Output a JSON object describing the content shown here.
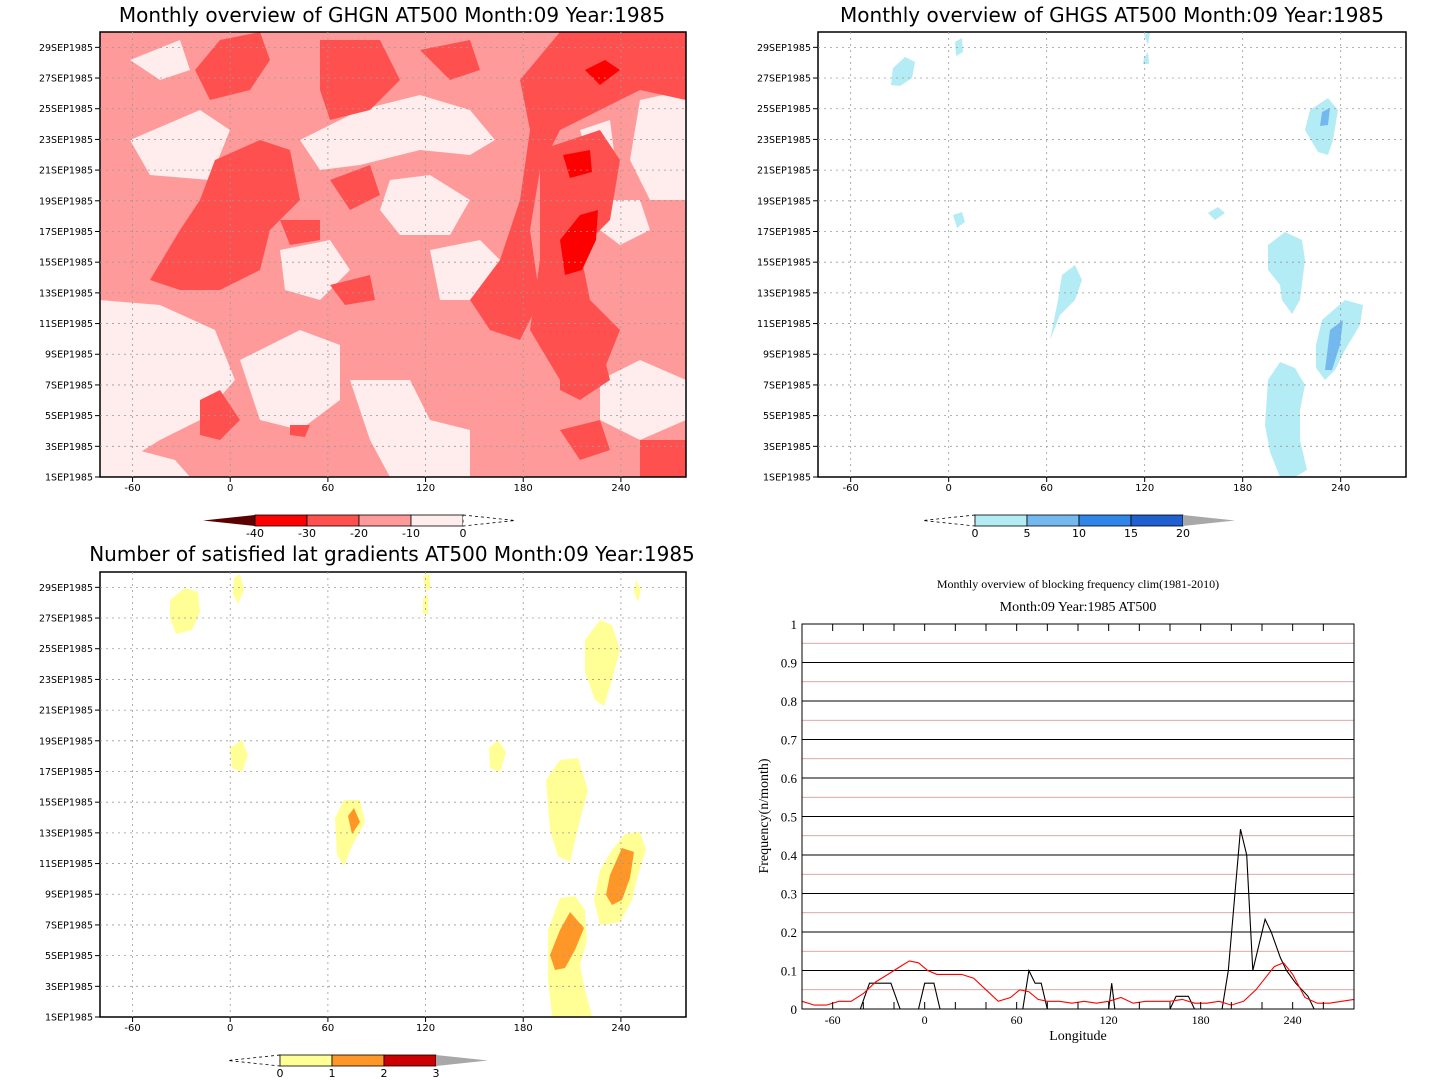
{
  "panels": [
    {
      "title": "Monthly overview of GHGN AT500 Month:09 Year:1985",
      "y_ticks": [
        "1SEP1985",
        "3SEP1985",
        "5SEP1985",
        "7SEP1985",
        "9SEP1985",
        "11SEP1985",
        "13SEP1985",
        "15SEP1985",
        "17SEP1985",
        "19SEP1985",
        "21SEP1985",
        "23SEP1985",
        "25SEP1985",
        "27SEP1985",
        "29SEP1985"
      ],
      "x_ticks": [
        "-60",
        "0",
        "60",
        "120",
        "180",
        "240"
      ],
      "colorbar": {
        "labels": [
          "-40",
          "-30",
          "-20",
          "-10",
          "0"
        ],
        "colors": [
          "#ff0000",
          "#ff5050",
          "#ff9a9a",
          "#ffecec"
        ],
        "under_color": "#5a0000",
        "over_color": "#ffffff"
      }
    },
    {
      "title": "Monthly overview of GHGS AT500 Month:09 Year:1985",
      "y_ticks": [
        "1SEP1985",
        "3SEP1985",
        "5SEP1985",
        "7SEP1985",
        "9SEP1985",
        "11SEP1985",
        "13SEP1985",
        "15SEP1985",
        "17SEP1985",
        "19SEP1985",
        "21SEP1985",
        "23SEP1985",
        "25SEP1985",
        "27SEP1985",
        "29SEP1985"
      ],
      "x_ticks": [
        "-60",
        "0",
        "60",
        "120",
        "180",
        "240"
      ],
      "colorbar": {
        "labels": [
          "0",
          "5",
          "10",
          "15",
          "20"
        ],
        "colors": [
          "#b4ecf6",
          "#74b8f0",
          "#2f86e8",
          "#1f5fd0"
        ],
        "under_color": "#ffffff",
        "over_color": "#a8a8a8"
      }
    },
    {
      "title": "Number of satisfied lat gradients AT500 Month:09 Year:1985",
      "y_ticks": [
        "1SEP1985",
        "3SEP1985",
        "5SEP1985",
        "7SEP1985",
        "9SEP1985",
        "11SEP1985",
        "13SEP1985",
        "15SEP1985",
        "17SEP1985",
        "19SEP1985",
        "21SEP1985",
        "23SEP1985",
        "25SEP1985",
        "27SEP1985",
        "29SEP1985"
      ],
      "x_ticks": [
        "-60",
        "0",
        "60",
        "120",
        "180",
        "240"
      ],
      "colorbar": {
        "labels": [
          "0",
          "1",
          "2",
          "3"
        ],
        "colors": [
          "#ffff96",
          "#ff9628",
          "#cc0000"
        ],
        "under_color": "#ffffff",
        "over_color": "#a8a8a8"
      }
    }
  ],
  "colors": {
    "ghgn": [
      "#ffecec",
      "#ff9a9a",
      "#ff5050",
      "#ff0000"
    ],
    "ghgs": [
      "#b4ecf6",
      "#74b8f0"
    ],
    "grad": [
      "#ffff96",
      "#ff9628"
    ],
    "line_year": "#000000",
    "line_clim": "#ff0000",
    "grid_minor": "#d08a8a"
  },
  "line_chart": {
    "title": "Monthly overview of blocking frequency clim(1981-2010)",
    "subtitle": "Month:09 Year:1985  AT500",
    "xlabel": "Longitude",
    "ylabel": "Frequency(n/month)",
    "x_ticks": [
      "-60",
      "0",
      "60",
      "120",
      "180",
      "240"
    ],
    "y_ticks": [
      "0",
      "0.1",
      "0.2",
      "0.3",
      "0.4",
      "0.5",
      "0.6",
      "0.7",
      "0.8",
      "0.9",
      "1"
    ]
  },
  "chart_data": [
    {
      "type": "heatmap",
      "title": "Monthly overview of GHGN AT500 Month:09 Year:1985",
      "x_range": [
        -80,
        280
      ],
      "x_ticks": [
        -60,
        0,
        60,
        120,
        180,
        240
      ],
      "y_range": [
        "1SEP1985",
        "30SEP1985"
      ],
      "levels": [
        -40,
        -30,
        -20,
        -10,
        0
      ],
      "note_series": "GHGN (filled contours, negative values)"
    },
    {
      "type": "heatmap",
      "title": "Monthly overview of GHGS AT500 Month:09 Year:1985",
      "x_range": [
        -80,
        280
      ],
      "x_ticks": [
        -60,
        0,
        60,
        120,
        180,
        240
      ],
      "y_range": [
        "1SEP1985",
        "30SEP1985"
      ],
      "levels": [
        0,
        5,
        10,
        15,
        20
      ]
    },
    {
      "type": "heatmap",
      "title": "Number of satisfied lat gradients AT500 Month:09 Year:1985",
      "x_range": [
        -80,
        280
      ],
      "x_ticks": [
        -60,
        0,
        60,
        120,
        180,
        240
      ],
      "y_range": [
        "1SEP1985",
        "30SEP1985"
      ],
      "levels": [
        0,
        1,
        2,
        3
      ]
    },
    {
      "type": "line",
      "title": "Monthly overview of blocking frequency clim(1981-2010)",
      "subtitle": "Month:09 Year:1985  AT500",
      "xlabel": "Longitude",
      "ylabel": "Frequency(n/month)",
      "xlim": [
        -80,
        280
      ],
      "ylim": [
        0,
        1
      ],
      "series": [
        {
          "color": "#000000",
          "x": [
            -80,
            -42,
            -36,
            -28,
            -22,
            -16,
            -4,
            0,
            6,
            10,
            64,
            68,
            72,
            76,
            80,
            120,
            122,
            124,
            160,
            164,
            172,
            176,
            194,
            198,
            206,
            210,
            214,
            222,
            226,
            232,
            236,
            242,
            250,
            254
          ],
          "y": [
            0,
            0,
            0.067,
            0.067,
            0.067,
            0,
            0,
            0.067,
            0.067,
            0,
            0,
            0.1,
            0.067,
            0.067,
            0,
            0,
            0.067,
            0,
            0,
            0.033,
            0.033,
            0,
            0,
            0.1,
            0.467,
            0.4,
            0.1,
            0.233,
            0.2,
            0.133,
            0.1,
            0.067,
            0.033,
            0
          ]
        },
        {
          "color": "#ff0000",
          "x": [
            -80,
            -72,
            -64,
            -56,
            -48,
            -40,
            -32,
            -24,
            -16,
            -10,
            -4,
            2,
            8,
            16,
            24,
            32,
            40,
            48,
            56,
            62,
            68,
            74,
            80,
            88,
            96,
            104,
            112,
            120,
            128,
            136,
            144,
            152,
            160,
            168,
            176,
            184,
            192,
            200,
            208,
            216,
            222,
            228,
            234,
            240,
            248,
            256,
            264,
            272,
            280
          ],
          "y": [
            0.02,
            0.01,
            0.01,
            0.02,
            0.02,
            0.04,
            0.07,
            0.09,
            0.11,
            0.125,
            0.12,
            0.1,
            0.09,
            0.09,
            0.09,
            0.08,
            0.05,
            0.02,
            0.03,
            0.05,
            0.045,
            0.025,
            0.02,
            0.02,
            0.015,
            0.02,
            0.015,
            0.02,
            0.03,
            0.015,
            0.02,
            0.02,
            0.02,
            0.025,
            0.015,
            0.015,
            0.02,
            0.01,
            0.02,
            0.05,
            0.08,
            0.11,
            0.12,
            0.09,
            0.03,
            0.015,
            0.015,
            0.02,
            0.025
          ]
        }
      ]
    }
  ]
}
